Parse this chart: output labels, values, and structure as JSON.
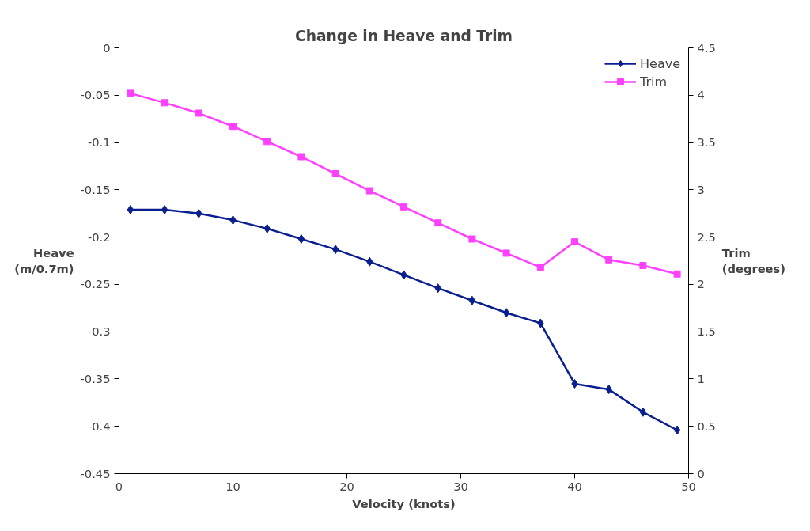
{
  "chart_data": {
    "type": "line",
    "title": "Change in Heave and Trim",
    "xlabel": "Velocity (knots)",
    "ylabel": "Heave (m/0.7m)",
    "y2label": "Trim (degrees)",
    "x": [
      1,
      4,
      7,
      10,
      13,
      16,
      19,
      22,
      25,
      28,
      31,
      34,
      37,
      40,
      43,
      46,
      49
    ],
    "series": [
      {
        "name": "Heave",
        "color": "#0a1f8f",
        "marker": "diamond",
        "values": [
          -0.171,
          -0.171,
          -0.175,
          -0.182,
          -0.191,
          -0.202,
          -0.213,
          -0.226,
          -0.24,
          -0.254,
          -0.267,
          -0.28,
          -0.291,
          -0.355,
          -0.361,
          -0.385,
          -0.404
        ]
      },
      {
        "name": "Trim",
        "color": "#ff40ff",
        "marker": "square",
        "axis": "y2",
        "values": [
          4.02,
          3.92,
          3.81,
          3.67,
          3.51,
          3.35,
          3.17,
          2.99,
          2.82,
          2.65,
          2.48,
          2.33,
          2.18,
          2.45,
          2.26,
          2.2,
          2.11
        ]
      }
    ],
    "xlim": [
      0,
      50
    ],
    "xticks": [
      0,
      10,
      20,
      30,
      40,
      50
    ],
    "ylim": [
      -0.45,
      0
    ],
    "yticks": [
      0,
      -0.05,
      -0.1,
      -0.15,
      -0.2,
      -0.25,
      -0.3,
      -0.35,
      -0.4,
      -0.45
    ],
    "y2lim": [
      0,
      4.5
    ],
    "y2ticks": [
      0,
      0.5,
      1,
      1.5,
      2,
      2.5,
      3,
      3.5,
      4,
      4.5
    ],
    "grid": false,
    "legend": "top right",
    "line_style": "solid"
  }
}
